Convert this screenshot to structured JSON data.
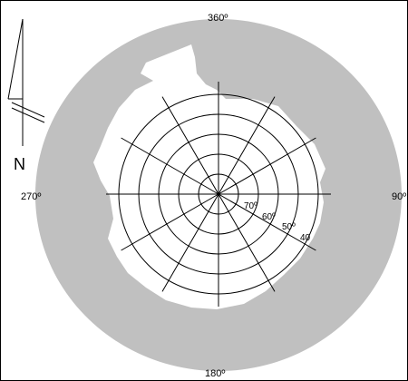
{
  "map": {
    "compass_labels": {
      "north": "360º",
      "east": "90º",
      "south": "180º",
      "west": "270º"
    },
    "north_arrow_label": "N",
    "latitude_labels": [
      "70º",
      "60º",
      "50º",
      "40"
    ],
    "colors": {
      "land": "#c0c0c0",
      "water": "#ffffff",
      "grid": "#000000",
      "border": "#000000"
    },
    "projection": "polar",
    "grid": true
  }
}
